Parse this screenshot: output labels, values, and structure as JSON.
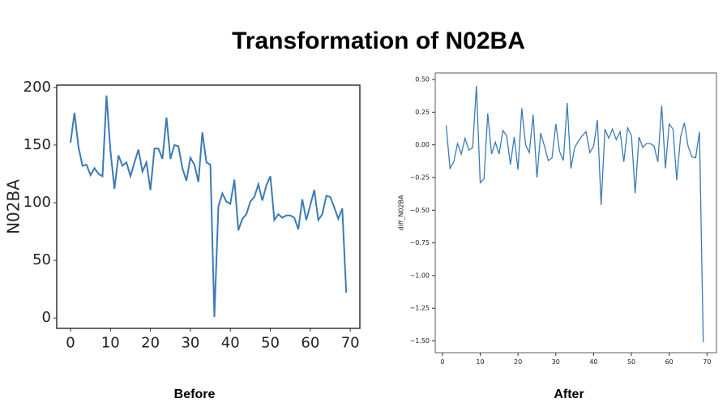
{
  "title": "Transformation of N02BA",
  "chart_data": [
    {
      "type": "line",
      "caption": "Before",
      "ylabel": "N02BA",
      "x": [
        0,
        1,
        2,
        3,
        4,
        5,
        6,
        7,
        8,
        9,
        10,
        11,
        12,
        13,
        14,
        15,
        16,
        17,
        18,
        19,
        20,
        21,
        22,
        23,
        24,
        25,
        26,
        27,
        28,
        29,
        30,
        31,
        32,
        33,
        34,
        35,
        36,
        37,
        38,
        39,
        40,
        41,
        42,
        43,
        44,
        45,
        46,
        47,
        48,
        49,
        50,
        51,
        52,
        53,
        54,
        55,
        56,
        57,
        58,
        59,
        60,
        61,
        62,
        63,
        64,
        65,
        66,
        67,
        68,
        69
      ],
      "values": [
        152,
        178,
        148,
        132,
        133,
        124,
        130,
        125,
        123,
        193,
        145,
        112,
        141,
        132,
        135,
        123,
        135,
        146,
        127,
        135,
        111,
        147,
        147,
        138,
        174,
        138,
        150,
        149,
        130,
        119,
        139,
        133,
        118,
        161,
        135,
        133,
        1,
        97,
        108,
        101,
        99,
        120,
        76,
        86,
        90,
        101,
        105,
        116,
        102,
        115,
        123,
        85,
        90,
        87,
        89,
        89,
        87,
        77,
        103,
        85,
        98,
        111,
        85,
        90,
        106,
        105,
        96,
        86,
        95,
        22
      ],
      "color": "#3b7bb5",
      "xlim": [
        -3.45,
        72.4
      ],
      "ylim": [
        -9,
        202
      ],
      "xticks": [
        0,
        10,
        20,
        30,
        40,
        50,
        60,
        70
      ],
      "yticks": [
        0,
        50,
        100,
        150,
        200
      ]
    },
    {
      "type": "line",
      "caption": "After",
      "ylabel": "diff_N02BA",
      "x": [
        1,
        2,
        3,
        4,
        5,
        6,
        7,
        8,
        9,
        10,
        11,
        12,
        13,
        14,
        15,
        16,
        17,
        18,
        19,
        20,
        21,
        22,
        23,
        24,
        25,
        26,
        27,
        28,
        29,
        30,
        31,
        32,
        33,
        34,
        35,
        36,
        37,
        38,
        39,
        40,
        41,
        42,
        43,
        44,
        45,
        46,
        47,
        48,
        49,
        50,
        51,
        52,
        53,
        54,
        55,
        56,
        57,
        58,
        59,
        60,
        61,
        62,
        63,
        64,
        65,
        66,
        67,
        68,
        69
      ],
      "values": [
        0.15,
        -0.18,
        -0.13,
        0.01,
        -0.07,
        0.05,
        -0.04,
        -0.02,
        0.45,
        -0.29,
        -0.26,
        0.24,
        -0.07,
        0.02,
        -0.07,
        0.11,
        0.07,
        -0.15,
        0.06,
        -0.19,
        0.28,
        0.0,
        -0.06,
        0.23,
        -0.25,
        0.09,
        -0.01,
        -0.12,
        -0.1,
        0.16,
        -0.05,
        -0.12,
        0.32,
        -0.18,
        -0.02,
        0.03,
        0.07,
        0.1,
        -0.06,
        -0.01,
        0.19,
        -0.46,
        0.12,
        0.05,
        0.12,
        0.04,
        0.1,
        -0.13,
        0.13,
        0.07,
        -0.37,
        0.06,
        -0.02,
        0.01,
        0.01,
        -0.01,
        -0.13,
        0.3,
        -0.18,
        0.16,
        0.12,
        -0.27,
        0.06,
        0.17,
        -0.01,
        -0.09,
        -0.1,
        0.1,
        -1.51
      ],
      "color": "#3b7bb5",
      "xlim": [
        -1.9,
        72.5
      ],
      "ylim": [
        -1.59,
        0.55
      ],
      "xticks": [
        0,
        10,
        20,
        30,
        40,
        50,
        60,
        70
      ],
      "yticks": [
        {
          "value": -1.5,
          "label": "−1.50"
        },
        {
          "value": -1.25,
          "label": "−1.25"
        },
        {
          "value": -1.0,
          "label": "−1.00"
        },
        {
          "value": -0.75,
          "label": "−0.75"
        },
        {
          "value": -0.5,
          "label": "−0.50"
        },
        {
          "value": -0.25,
          "label": "−0.25"
        },
        {
          "value": 0.0,
          "label": "0.00"
        },
        {
          "value": 0.25,
          "label": "0.25"
        },
        {
          "value": 0.5,
          "label": "0.50"
        }
      ]
    }
  ]
}
